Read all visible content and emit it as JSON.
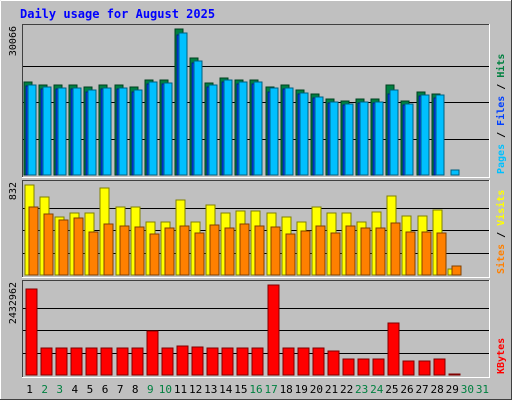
{
  "chart_data": {
    "type": "bar",
    "title": "Daily usage for August 2025",
    "x_ticks": [
      "1",
      "2",
      "3",
      "4",
      "5",
      "6",
      "7",
      "8",
      "9",
      "10",
      "11",
      "12",
      "13",
      "14",
      "15",
      "16",
      "17",
      "18",
      "19",
      "20",
      "21",
      "22",
      "23",
      "24",
      "25",
      "26",
      "27",
      "28",
      "29",
      "30",
      "31"
    ],
    "weekend_days": [
      2,
      3,
      9,
      10,
      16,
      17,
      23,
      24,
      30,
      31
    ],
    "panels": [
      {
        "name": "hits-files-pages",
        "ymax": 30066,
        "ymax_label": "30066",
        "right_label": {
          "parts": [
            "Pages",
            " / ",
            "Files",
            " / ",
            "Hits"
          ],
          "colors": [
            "#00c0ff",
            "#000000",
            "#0040ff",
            "#000000",
            "#008040"
          ]
        },
        "series": [
          {
            "name": "Hits",
            "color": "#008040",
            "values": [
              19080,
              18620,
              18480,
              18480,
              18020,
              18480,
              18480,
              18020,
              19540,
              19540,
              30066,
              24120,
              18960,
              20000,
              19540,
              19540,
              18020,
              18480,
              17560,
              16640,
              15720,
              15260,
              15720,
              15720,
              18480,
              15260,
              17100,
              16640,
              0,
              0,
              0
            ]
          },
          {
            "name": "Files",
            "color": "#0040ff",
            "values": [
              18250,
              17790,
              17650,
              17650,
              17190,
              17650,
              17650,
              17190,
              18710,
              18710,
              28840,
              23160,
              18130,
              19170,
              18710,
              18710,
              17190,
              17650,
              16730,
              15810,
              14890,
              14430,
              14890,
              14890,
              16730,
              14430,
              16270,
              15810,
              0,
              0,
              0
            ]
          },
          {
            "name": "Pages",
            "color": "#00c0ff",
            "values": [
              18480,
              18020,
              17880,
              17880,
              17420,
              17880,
              17880,
              17420,
              19080,
              18940,
              29140,
              23500,
              18480,
              19540,
              19080,
              19080,
              17880,
              17880,
              16960,
              16040,
              15120,
              14660,
              15120,
              15120,
              17420,
              14660,
              16500,
              16500,
              980,
              0,
              0
            ]
          }
        ]
      },
      {
        "name": "visits-sites",
        "ymax": 832,
        "ymax_label": "832",
        "right_label": {
          "parts": [
            "Sites",
            " / ",
            "Visits"
          ],
          "colors": [
            "#ff8000",
            "#000000",
            "#ffff00"
          ]
        },
        "series": [
          {
            "name": "Visits",
            "color": "#ffff00",
            "values": [
              832,
              720,
              540,
              570,
              570,
              800,
              630,
              630,
              490,
              490,
              690,
              490,
              650,
              570,
              590,
              590,
              570,
              540,
              490,
              630,
              570,
              570,
              490,
              580,
              730,
              550,
              550,
              600,
              60,
              0,
              0
            ]
          },
          {
            "name": "Sites",
            "color": "#ff8000",
            "values": [
              630,
              560,
              510,
              530,
              400,
              470,
              450,
              440,
              380,
              430,
              450,
              390,
              460,
              430,
              470,
              450,
              440,
              380,
              410,
              450,
              390,
              450,
              430,
              430,
              480,
              400,
              400,
              390,
              80,
              0,
              0
            ]
          }
        ]
      },
      {
        "name": "kbytes",
        "ymax": 2432962,
        "ymax_label": "2432962",
        "right_label": {
          "parts": [
            "KBytes"
          ],
          "colors": [
            "#ff0000"
          ]
        },
        "series": [
          {
            "name": "KBytes",
            "color": "#ff0000",
            "values": [
              2330000,
              720000,
              720000,
              720000,
              720000,
              720000,
              720000,
              720000,
              1190000,
              720000,
              780000,
              770000,
              720000,
              720000,
              720000,
              720000,
              2432962,
              720000,
              720000,
              720000,
              650000,
              420000,
              420000,
              420000,
              1410000,
              370000,
              380000,
              420000,
              40000,
              0,
              0
            ]
          }
        ]
      }
    ]
  },
  "colors": {
    "background": "#c0c0c0",
    "title": "#0000ff",
    "weekday_tick": "#000000",
    "weekend_tick": "#008040",
    "gridline": "#000000"
  }
}
